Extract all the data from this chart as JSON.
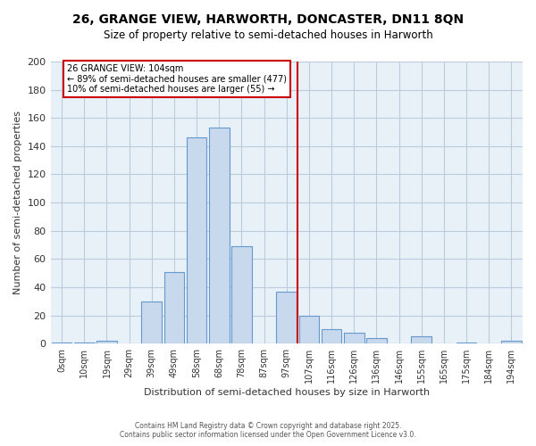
{
  "title": "26, GRANGE VIEW, HARWORTH, DONCASTER, DN11 8QN",
  "subtitle": "Size of property relative to semi-detached houses in Harworth",
  "xlabel": "Distribution of semi-detached houses by size in Harworth",
  "ylabel": "Number of semi-detached properties",
  "bar_labels": [
    "0sqm",
    "10sqm",
    "19sqm",
    "29sqm",
    "39sqm",
    "49sqm",
    "58sqm",
    "68sqm",
    "78sqm",
    "87sqm",
    "97sqm",
    "107sqm",
    "116sqm",
    "126sqm",
    "136sqm",
    "146sqm",
    "155sqm",
    "165sqm",
    "175sqm",
    "184sqm",
    "194sqm"
  ],
  "bar_values": [
    1,
    1,
    2,
    0,
    30,
    51,
    146,
    153,
    69,
    0,
    37,
    20,
    10,
    8,
    4,
    0,
    5,
    0,
    1,
    0,
    2
  ],
  "bar_color": "#c8d8ed",
  "bar_edge_color": "#6699cc",
  "property_label": "26 GRANGE VIEW: 104sqm",
  "pct_smaller": 89,
  "count_smaller": 477,
  "pct_larger": 10,
  "count_larger": 55,
  "vline_x_index": 10,
  "ylim": [
    0,
    200
  ],
  "yticks": [
    0,
    20,
    40,
    60,
    80,
    100,
    120,
    140,
    160,
    180,
    200
  ],
  "annotation_box_color": "#ffffff",
  "annotation_border_color": "#cc0000",
  "vline_color": "#cc0000",
  "grid_color": "#bbccdd",
  "plot_bg_color": "#e8f0f8",
  "fig_bg_color": "#ffffff",
  "footer_line1": "Contains HM Land Registry data © Crown copyright and database right 2025.",
  "footer_line2": "Contains public sector information licensed under the Open Government Licence v3.0."
}
